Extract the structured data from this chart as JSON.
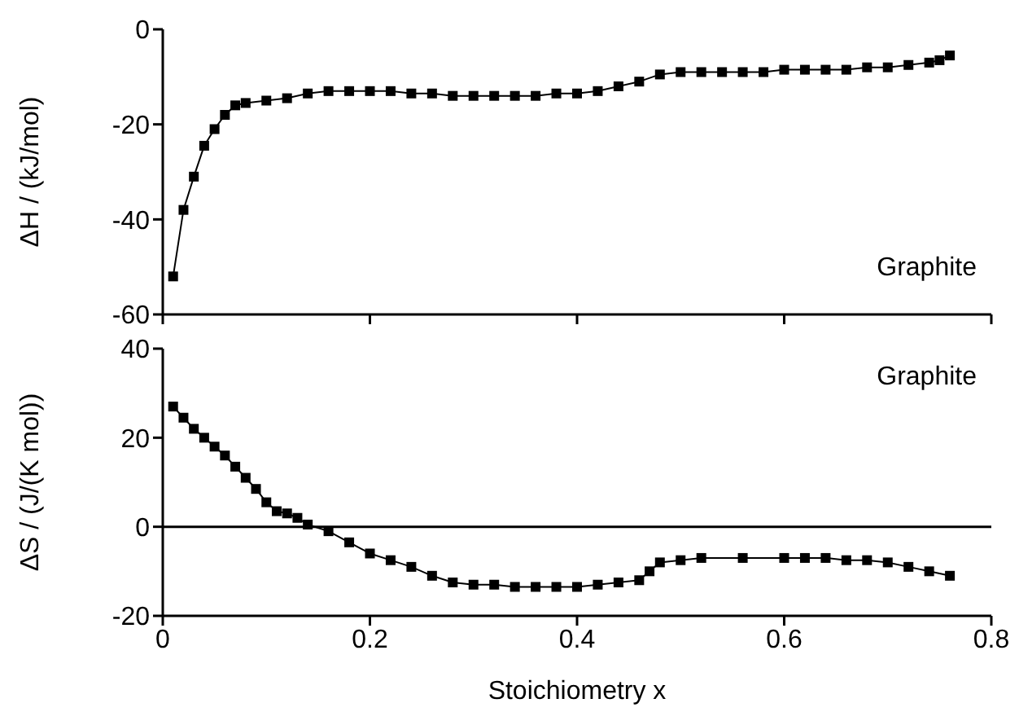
{
  "chart_data": [
    {
      "type": "line",
      "ylabel": "ΔH / (kJ/mol)",
      "annotations": [
        "Graphite"
      ],
      "marker": "square",
      "line_style": "solid",
      "tick_labels": "y",
      "xlim": [
        0,
        0.8
      ],
      "xticks": [
        0,
        0.2,
        0.4,
        0.6,
        0.8
      ],
      "ylim": [
        -60,
        0
      ],
      "yticks": [
        -60,
        -40,
        -20,
        0
      ],
      "series": [
        {
          "color": "#000000",
          "x": [
            0.01,
            0.02,
            0.03,
            0.04,
            0.05,
            0.06,
            0.07,
            0.08,
            0.1,
            0.12,
            0.14,
            0.16,
            0.18,
            0.2,
            0.22,
            0.24,
            0.26,
            0.28,
            0.3,
            0.32,
            0.34,
            0.36,
            0.38,
            0.4,
            0.42,
            0.44,
            0.46,
            0.48,
            0.5,
            0.52,
            0.54,
            0.56,
            0.58,
            0.6,
            0.62,
            0.64,
            0.66,
            0.68,
            0.7,
            0.72,
            0.74,
            0.75,
            0.76
          ],
          "values": [
            -52,
            -38,
            -31,
            -24.5,
            -21,
            -18,
            -16,
            -15.5,
            -15,
            -14.5,
            -13.5,
            -13,
            -13,
            -13,
            -13,
            -13.5,
            -13.5,
            -14,
            -14,
            -14,
            -14,
            -14,
            -13.5,
            -13.5,
            -13,
            -12,
            -11,
            -9.5,
            -9,
            -9,
            -9,
            -9,
            -9,
            -8.5,
            -8.5,
            -8.5,
            -8.5,
            -8,
            -8,
            -7.5,
            -7,
            -6.5,
            -5.5
          ]
        }
      ]
    },
    {
      "type": "line",
      "xlabel": "Stoichiometry x",
      "ylabel": "ΔS / (J/(K mol))",
      "annotations": [
        "Graphite"
      ],
      "marker": "square",
      "line_style": "solid",
      "xlim": [
        0,
        0.8
      ],
      "xticks": [
        0,
        0.2,
        0.4,
        0.6,
        0.8
      ],
      "ylim": [
        -20,
        40
      ],
      "yticks": [
        -20,
        0,
        20,
        40
      ],
      "ref_lines": [
        {
          "axis": "y",
          "value": 0,
          "color": "#000000"
        }
      ],
      "series": [
        {
          "color": "#000000",
          "x": [
            0.01,
            0.02,
            0.03,
            0.04,
            0.05,
            0.06,
            0.07,
            0.08,
            0.09,
            0.1,
            0.11,
            0.12,
            0.13,
            0.14,
            0.16,
            0.18,
            0.2,
            0.22,
            0.24,
            0.26,
            0.28,
            0.3,
            0.32,
            0.34,
            0.36,
            0.38,
            0.4,
            0.42,
            0.44,
            0.46,
            0.47,
            0.48,
            0.5,
            0.52,
            0.56,
            0.6,
            0.62,
            0.64,
            0.66,
            0.68,
            0.7,
            0.72,
            0.74,
            0.76
          ],
          "values": [
            27,
            24.5,
            22,
            20,
            18,
            16,
            13.5,
            11,
            8.5,
            5.5,
            3.5,
            3,
            2,
            0.5,
            -1,
            -3.5,
            -6,
            -7.5,
            -9,
            -11,
            -12.5,
            -13,
            -13,
            -13.5,
            -13.5,
            -13.5,
            -13.5,
            -13,
            -12.5,
            -12,
            -10,
            -8,
            -7.5,
            -7,
            -7,
            -7,
            -7,
            -7,
            -7.5,
            -7.5,
            -8,
            -9,
            -10,
            -11
          ]
        }
      ]
    }
  ]
}
